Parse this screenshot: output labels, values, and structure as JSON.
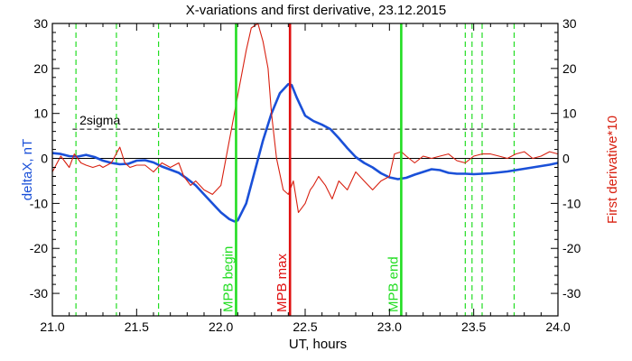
{
  "chart_data": {
    "type": "line",
    "title": "X-variations and first derivative, 23.12.2015",
    "xlabel": "UT, hours",
    "ylabel_left": "deltaX, nT",
    "ylabel_right": "First derivative*10",
    "xlim": [
      21.0,
      24.0
    ],
    "ylim": [
      -35,
      30
    ],
    "x_ticks": [
      "21.0",
      "21.5",
      "22.0",
      "22.5",
      "23.0",
      "23.5",
      "24.0"
    ],
    "y_ticks": [
      "30",
      "20",
      "10",
      "0",
      "-10",
      "-20",
      "-30"
    ],
    "grid": false,
    "sigma_label": "2sigma",
    "sigma_value": 6.5,
    "colors": {
      "deltaX": "#1a50d8",
      "derivative": "#d82010",
      "mpb_edge": "#22dd22",
      "mpb_max": "#e01010",
      "axis": "#000000"
    },
    "series": [
      {
        "key": "deltaX",
        "x": [
          21.0,
          21.05,
          21.1,
          21.15,
          21.2,
          21.25,
          21.3,
          21.35,
          21.4,
          21.45,
          21.5,
          21.55,
          21.6,
          21.65,
          21.7,
          21.75,
          21.8,
          21.85,
          21.9,
          21.95,
          22.0,
          22.05,
          22.08,
          22.1,
          22.15,
          22.2,
          22.25,
          22.3,
          22.35,
          22.4,
          22.42,
          22.45,
          22.5,
          22.55,
          22.6,
          22.65,
          22.7,
          22.75,
          22.8,
          22.85,
          22.9,
          22.95,
          23.0,
          23.05,
          23.1,
          23.15,
          23.2,
          23.25,
          23.3,
          23.35,
          23.4,
          23.45,
          23.5,
          23.55,
          23.6,
          23.65,
          23.7,
          23.75,
          23.8,
          23.85,
          23.9,
          23.95,
          24.0
        ],
        "y": [
          1.2,
          1.0,
          0.5,
          0.4,
          0.8,
          0.3,
          -0.5,
          -1.0,
          -1.3,
          -1.2,
          -0.5,
          -0.4,
          -0.9,
          -1.8,
          -2.5,
          -3.2,
          -4.5,
          -6.0,
          -8.0,
          -10.0,
          -12.0,
          -13.5,
          -14.0,
          -13.8,
          -10.0,
          -3.0,
          4.0,
          10.0,
          14.5,
          16.5,
          16.3,
          13.5,
          9.5,
          8.3,
          7.5,
          6.5,
          4.5,
          2.3,
          0.3,
          -1.0,
          -2.0,
          -3.3,
          -4.2,
          -4.6,
          -4.3,
          -3.6,
          -3.0,
          -2.4,
          -2.6,
          -3.2,
          -3.4,
          -3.4,
          -3.5,
          -3.4,
          -3.3,
          -3.1,
          -2.9,
          -2.6,
          -2.3,
          -2.0,
          -1.7,
          -1.4,
          -1.0
        ]
      },
      {
        "key": "derivative",
        "x": [
          21.0,
          21.05,
          21.1,
          21.13,
          21.17,
          21.2,
          21.24,
          21.28,
          21.3,
          21.35,
          21.4,
          21.43,
          21.46,
          21.5,
          21.55,
          21.6,
          21.65,
          21.7,
          21.75,
          21.78,
          21.82,
          21.85,
          21.9,
          21.95,
          22.0,
          22.05,
          22.1,
          22.15,
          22.18,
          22.22,
          22.25,
          22.28,
          22.3,
          22.33,
          22.37,
          22.4,
          22.43,
          22.46,
          22.5,
          22.53,
          22.55,
          22.58,
          22.62,
          22.66,
          22.7,
          22.75,
          22.8,
          22.85,
          22.9,
          22.95,
          23.0,
          23.03,
          23.07,
          23.1,
          23.15,
          23.2,
          23.25,
          23.3,
          23.35,
          23.4,
          23.45,
          23.5,
          23.55,
          23.6,
          23.65,
          23.7,
          23.75,
          23.8,
          23.85,
          23.9,
          23.95,
          24.0
        ],
        "y": [
          -3.0,
          0.5,
          -2.0,
          1.0,
          -1.0,
          -1.5,
          -2.0,
          -1.5,
          -2.0,
          -1.0,
          2.5,
          -1.0,
          -2.0,
          -1.5,
          -1.5,
          -3.0,
          -1.0,
          -2.0,
          -1.0,
          -4.0,
          -6.0,
          -5.0,
          -7.0,
          -8.0,
          -6.0,
          4.0,
          14.0,
          24.0,
          29.0,
          30.0,
          26.0,
          20.0,
          10.0,
          0.0,
          -7.0,
          -8.0,
          -5.0,
          -12.0,
          -10.0,
          -7.0,
          -6.0,
          -4.0,
          -6.0,
          -9.0,
          -5.0,
          -7.0,
          -3.0,
          -5.0,
          -7.0,
          -5.0,
          -4.0,
          1.0,
          1.5,
          0.5,
          -1.0,
          0.5,
          0.0,
          0.5,
          1.0,
          -0.5,
          -1.0,
          0.5,
          1.0,
          1.0,
          0.5,
          0.0,
          1.0,
          1.5,
          0.0,
          0.5,
          1.5,
          1.0
        ]
      }
    ],
    "dashed_verticals": [
      21.14,
      21.38,
      21.63,
      23.45,
      23.49,
      23.55,
      23.74
    ],
    "markers": [
      {
        "x": 22.09,
        "label": "MPB begin",
        "color_key": "mpb_edge"
      },
      {
        "x": 22.41,
        "label": "MPB max",
        "color_key": "mpb_max"
      },
      {
        "x": 23.07,
        "label": "MPB end",
        "color_key": "mpb_edge"
      }
    ]
  }
}
